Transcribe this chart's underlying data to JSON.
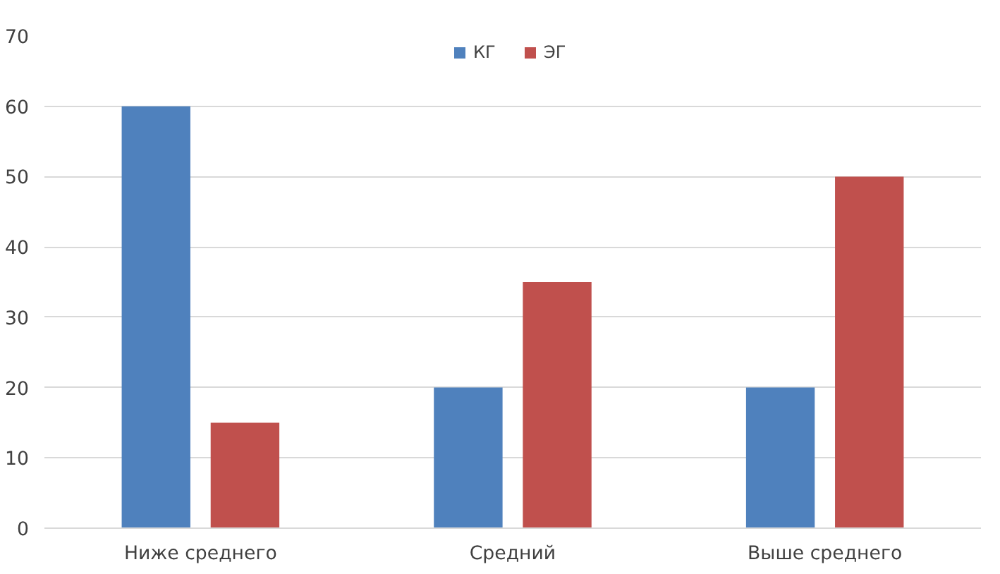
{
  "chart_data": {
    "type": "bar",
    "categories": [
      "Ниже среднего",
      "Средний",
      "Выше среднего"
    ],
    "series": [
      {
        "name": "КГ",
        "color": "#4f81bd",
        "values": [
          60,
          20,
          20
        ]
      },
      {
        "name": "ЭГ",
        "color": "#c0504d",
        "values": [
          15,
          35,
          50
        ]
      }
    ],
    "ylim": [
      0,
      70
    ],
    "yticks": [
      0,
      10,
      20,
      30,
      40,
      50,
      60,
      70
    ],
    "grid": "y",
    "legend": "top"
  }
}
